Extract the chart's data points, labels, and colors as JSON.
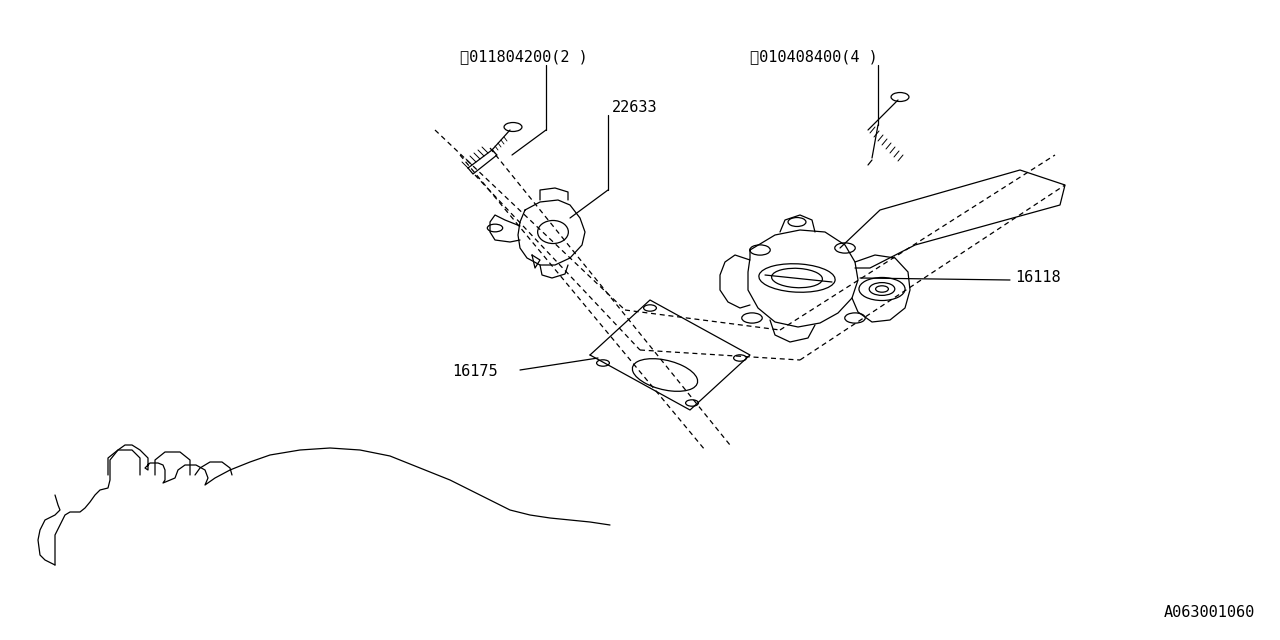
{
  "bg_color": "#ffffff",
  "line_color": "#000000",
  "fig_width": 12.8,
  "fig_height": 6.4,
  "dpi": 100,
  "diagram_code": "A063001060",
  "s_label": "Ⓢ011804200(2 )",
  "b_label": "Ⓓ010408400(4 )",
  "part_22633": "22633",
  "part_16118": "16118",
  "part_16175": "16175",
  "font_size": 11
}
